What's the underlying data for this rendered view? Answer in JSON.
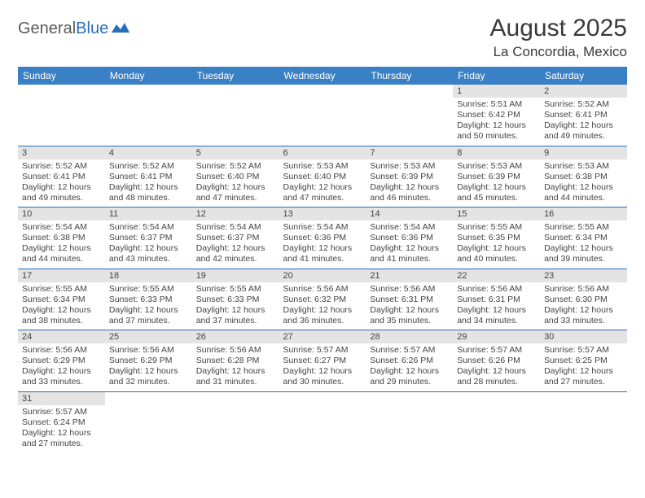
{
  "brand": {
    "part1": "General",
    "part2": "Blue",
    "text_color1": "#5a5a5a",
    "text_color2": "#2a6db8",
    "mark_color": "#2a6db8"
  },
  "title": "August 2025",
  "location": "La Concordia, Mexico",
  "header_bg": "#3a80c4",
  "header_fg": "#ffffff",
  "row_separator_color": "#2a6db8",
  "daynum_bg": "#e4e4e4",
  "text_color": "#444444",
  "background_color": "#ffffff",
  "weekdays": [
    "Sunday",
    "Monday",
    "Tuesday",
    "Wednesday",
    "Thursday",
    "Friday",
    "Saturday"
  ],
  "weeks": [
    [
      null,
      null,
      null,
      null,
      null,
      {
        "n": "1",
        "sunrise": "5:51 AM",
        "sunset": "6:42 PM",
        "daylight": "12 hours and 50 minutes."
      },
      {
        "n": "2",
        "sunrise": "5:52 AM",
        "sunset": "6:41 PM",
        "daylight": "12 hours and 49 minutes."
      }
    ],
    [
      {
        "n": "3",
        "sunrise": "5:52 AM",
        "sunset": "6:41 PM",
        "daylight": "12 hours and 49 minutes."
      },
      {
        "n": "4",
        "sunrise": "5:52 AM",
        "sunset": "6:41 PM",
        "daylight": "12 hours and 48 minutes."
      },
      {
        "n": "5",
        "sunrise": "5:52 AM",
        "sunset": "6:40 PM",
        "daylight": "12 hours and 47 minutes."
      },
      {
        "n": "6",
        "sunrise": "5:53 AM",
        "sunset": "6:40 PM",
        "daylight": "12 hours and 47 minutes."
      },
      {
        "n": "7",
        "sunrise": "5:53 AM",
        "sunset": "6:39 PM",
        "daylight": "12 hours and 46 minutes."
      },
      {
        "n": "8",
        "sunrise": "5:53 AM",
        "sunset": "6:39 PM",
        "daylight": "12 hours and 45 minutes."
      },
      {
        "n": "9",
        "sunrise": "5:53 AM",
        "sunset": "6:38 PM",
        "daylight": "12 hours and 44 minutes."
      }
    ],
    [
      {
        "n": "10",
        "sunrise": "5:54 AM",
        "sunset": "6:38 PM",
        "daylight": "12 hours and 44 minutes."
      },
      {
        "n": "11",
        "sunrise": "5:54 AM",
        "sunset": "6:37 PM",
        "daylight": "12 hours and 43 minutes."
      },
      {
        "n": "12",
        "sunrise": "5:54 AM",
        "sunset": "6:37 PM",
        "daylight": "12 hours and 42 minutes."
      },
      {
        "n": "13",
        "sunrise": "5:54 AM",
        "sunset": "6:36 PM",
        "daylight": "12 hours and 41 minutes."
      },
      {
        "n": "14",
        "sunrise": "5:54 AM",
        "sunset": "6:36 PM",
        "daylight": "12 hours and 41 minutes."
      },
      {
        "n": "15",
        "sunrise": "5:55 AM",
        "sunset": "6:35 PM",
        "daylight": "12 hours and 40 minutes."
      },
      {
        "n": "16",
        "sunrise": "5:55 AM",
        "sunset": "6:34 PM",
        "daylight": "12 hours and 39 minutes."
      }
    ],
    [
      {
        "n": "17",
        "sunrise": "5:55 AM",
        "sunset": "6:34 PM",
        "daylight": "12 hours and 38 minutes."
      },
      {
        "n": "18",
        "sunrise": "5:55 AM",
        "sunset": "6:33 PM",
        "daylight": "12 hours and 37 minutes."
      },
      {
        "n": "19",
        "sunrise": "5:55 AM",
        "sunset": "6:33 PM",
        "daylight": "12 hours and 37 minutes."
      },
      {
        "n": "20",
        "sunrise": "5:56 AM",
        "sunset": "6:32 PM",
        "daylight": "12 hours and 36 minutes."
      },
      {
        "n": "21",
        "sunrise": "5:56 AM",
        "sunset": "6:31 PM",
        "daylight": "12 hours and 35 minutes."
      },
      {
        "n": "22",
        "sunrise": "5:56 AM",
        "sunset": "6:31 PM",
        "daylight": "12 hours and 34 minutes."
      },
      {
        "n": "23",
        "sunrise": "5:56 AM",
        "sunset": "6:30 PM",
        "daylight": "12 hours and 33 minutes."
      }
    ],
    [
      {
        "n": "24",
        "sunrise": "5:56 AM",
        "sunset": "6:29 PM",
        "daylight": "12 hours and 33 minutes."
      },
      {
        "n": "25",
        "sunrise": "5:56 AM",
        "sunset": "6:29 PM",
        "daylight": "12 hours and 32 minutes."
      },
      {
        "n": "26",
        "sunrise": "5:56 AM",
        "sunset": "6:28 PM",
        "daylight": "12 hours and 31 minutes."
      },
      {
        "n": "27",
        "sunrise": "5:57 AM",
        "sunset": "6:27 PM",
        "daylight": "12 hours and 30 minutes."
      },
      {
        "n": "28",
        "sunrise": "5:57 AM",
        "sunset": "6:26 PM",
        "daylight": "12 hours and 29 minutes."
      },
      {
        "n": "29",
        "sunrise": "5:57 AM",
        "sunset": "6:26 PM",
        "daylight": "12 hours and 28 minutes."
      },
      {
        "n": "30",
        "sunrise": "5:57 AM",
        "sunset": "6:25 PM",
        "daylight": "12 hours and 27 minutes."
      }
    ],
    [
      {
        "n": "31",
        "sunrise": "5:57 AM",
        "sunset": "6:24 PM",
        "daylight": "12 hours and 27 minutes."
      },
      null,
      null,
      null,
      null,
      null,
      null
    ]
  ],
  "labels": {
    "sunrise": "Sunrise:",
    "sunset": "Sunset:",
    "daylight": "Daylight:"
  }
}
